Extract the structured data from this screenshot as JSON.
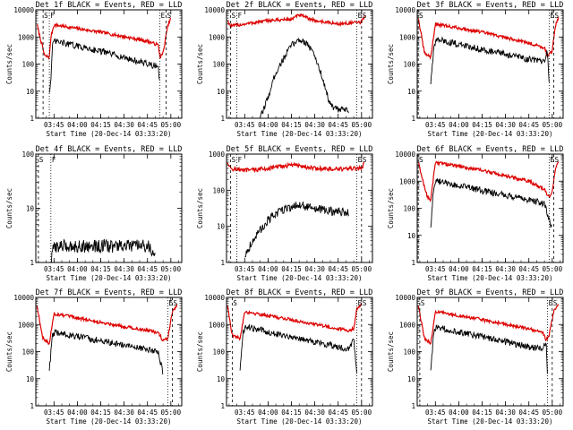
{
  "colors": {
    "events": "#000000",
    "lld": "#dd0000",
    "axes": "#000000",
    "background": "#ffffff"
  },
  "x_tick_labels": [
    "03:45",
    "04:00",
    "04:15",
    "04:30",
    "04:45",
    "05:00"
  ],
  "y_axis_label": "Counts/sec",
  "x_axis_label": "Start Time (20-Dec-14 03:33:20)",
  "chart_data": [
    {
      "type": "line",
      "title": "Det 1f BLACK = Events, RED = LLD",
      "yscale": "log",
      "ylim": [
        1,
        10000
      ],
      "xlabel": "Start Time (20-Dec-14 03:33:20)",
      "ylabel": "Counts/sec",
      "marker_labels": [
        {
          "text": "S",
          "t": "03:38"
        },
        {
          "text": "F",
          "t": "03:42"
        },
        {
          "text": "E",
          "t": "04:53"
        },
        {
          "text": "S",
          "t": "04:57"
        }
      ],
      "series": [
        {
          "role": "LLD",
          "points": [
            [
              "03:34",
              3000
            ],
            [
              "03:39",
              200
            ],
            [
              "03:42",
              180
            ],
            [
              "03:43",
              1000
            ],
            [
              "03:45",
              2800
            ],
            [
              "04:15",
              1500
            ],
            [
              "04:45",
              700
            ],
            [
              "04:52",
              500
            ],
            [
              "04:53",
              180
            ],
            [
              "04:55",
              250
            ],
            [
              "04:58",
              2500
            ],
            [
              "05:00",
              5000
            ]
          ]
        },
        {
          "role": "Events",
          "points": [
            [
              "03:42",
              10
            ],
            [
              "03:43",
              25
            ],
            [
              "03:44",
              400
            ],
            [
              "03:45",
              700
            ],
            [
              "04:15",
              300
            ],
            [
              "04:45",
              100
            ],
            [
              "04:52",
              80
            ],
            [
              "04:53",
              15
            ]
          ]
        }
      ]
    },
    {
      "type": "line",
      "title": "Det 2f BLACK = Events, RED = LLD",
      "yscale": "log",
      "ylim": [
        1,
        10000
      ],
      "xlabel": "Start Time (20-Dec-14 03:33:20)",
      "ylabel": "Counts/sec",
      "marker_labels": [
        {
          "text": "S",
          "t": "03:36"
        },
        {
          "text": "F",
          "t": "03:40"
        },
        {
          "text": "E",
          "t": "04:57"
        },
        {
          "text": "S",
          "t": "05:00"
        }
      ],
      "series": [
        {
          "role": "LLD",
          "points": [
            [
              "03:34",
              4000
            ],
            [
              "03:36",
              2500
            ],
            [
              "03:45",
              3000
            ],
            [
              "04:00",
              4000
            ],
            [
              "04:15",
              4500
            ],
            [
              "04:20",
              6500
            ],
            [
              "04:30",
              4000
            ],
            [
              "04:45",
              3000
            ],
            [
              "05:00",
              3500
            ],
            [
              "05:02",
              6000
            ]
          ]
        },
        {
          "role": "Events",
          "points": [
            [
              "03:55",
              1
            ],
            [
              "04:00",
              6
            ],
            [
              "04:05",
              50
            ],
            [
              "04:15",
              500
            ],
            [
              "04:20",
              800
            ],
            [
              "04:25",
              600
            ],
            [
              "04:30",
              200
            ],
            [
              "04:35",
              30
            ],
            [
              "04:40",
              3
            ],
            [
              "04:45",
              2
            ],
            [
              "04:52",
              2
            ]
          ]
        }
      ]
    },
    {
      "type": "line",
      "title": "Det 3f BLACK = Events, RED = LLD",
      "yscale": "log",
      "ylim": [
        1,
        10000
      ],
      "xlabel": "Start Time (20-Dec-14 03:33:20)",
      "ylabel": "Counts/sec",
      "marker_labels": [
        {
          "text": "S",
          "t": "03:34"
        },
        {
          "text": "E",
          "t": "04:58"
        },
        {
          "text": "S",
          "t": "05:01"
        }
      ],
      "series": [
        {
          "role": "LLD",
          "points": [
            [
              "03:34",
              5000
            ],
            [
              "03:38",
              250
            ],
            [
              "03:42",
              180
            ],
            [
              "03:45",
              3000
            ],
            [
              "04:15",
              1500
            ],
            [
              "04:45",
              600
            ],
            [
              "04:55",
              400
            ],
            [
              "04:57",
              200
            ],
            [
              "05:00",
              300
            ],
            [
              "05:02",
              2500
            ],
            [
              "05:04",
              5000
            ]
          ]
        },
        {
          "role": "Events",
          "points": [
            [
              "03:42",
              20
            ],
            [
              "03:44",
              400
            ],
            [
              "03:46",
              800
            ],
            [
              "04:15",
              350
            ],
            [
              "04:45",
              150
            ],
            [
              "04:55",
              120
            ],
            [
              "04:57",
              300
            ],
            [
              "04:58",
              15
            ]
          ]
        }
      ]
    },
    {
      "type": "line",
      "title": "Det 4f BLACK = Events, RED = LLD",
      "yscale": "log",
      "ylim": [
        1,
        100
      ],
      "xlabel": "Start Time (20-Dec-14 03:33:20)",
      "ylabel": "Counts/sec",
      "marker_labels": [
        {
          "text": "S",
          "t": "03:35"
        },
        {
          "text": "F",
          "t": "03:43"
        }
      ],
      "series": [
        {
          "role": "Events",
          "points": [
            [
              "03:43",
              1
            ],
            [
              "03:45",
              2
            ],
            [
              "04:00",
              2
            ],
            [
              "04:15",
              2
            ],
            [
              "04:30",
              2
            ],
            [
              "04:45",
              2
            ],
            [
              "04:50",
              1.5
            ]
          ]
        }
      ]
    },
    {
      "type": "line",
      "title": "Det 5f BLACK = Events, RED = LLD",
      "yscale": "log",
      "ylim": [
        1,
        1000
      ],
      "xlabel": "Start Time (20-Dec-14 03:33:20)",
      "ylabel": "Counts/sec",
      "marker_labels": [
        {
          "text": "S",
          "t": "03:36"
        },
        {
          "text": "F",
          "t": "03:40"
        },
        {
          "text": "E",
          "t": "04:57"
        },
        {
          "text": "S",
          "t": "05:00"
        }
      ],
      "series": [
        {
          "role": "LLD",
          "points": [
            [
              "03:34",
              600
            ],
            [
              "03:36",
              400
            ],
            [
              "03:45",
              350
            ],
            [
              "04:00",
              400
            ],
            [
              "04:15",
              500
            ],
            [
              "04:20",
              480
            ],
            [
              "04:30",
              400
            ],
            [
              "04:45",
              380
            ],
            [
              "05:00",
              400
            ],
            [
              "05:02",
              600
            ]
          ]
        },
        {
          "role": "Events",
          "points": [
            [
              "03:45",
              1.5
            ],
            [
              "03:50",
              4
            ],
            [
              "04:00",
              15
            ],
            [
              "04:10",
              30
            ],
            [
              "04:20",
              40
            ],
            [
              "04:30",
              30
            ],
            [
              "04:45",
              25
            ],
            [
              "04:52",
              25
            ]
          ]
        }
      ]
    },
    {
      "type": "line",
      "title": "Det 6f BLACK = Events, RED = LLD",
      "yscale": "log",
      "ylim": [
        1,
        10000
      ],
      "xlabel": "Start Time (20-Dec-14 03:33:20)",
      "ylabel": "Counts/sec",
      "marker_labels": [
        {
          "text": "S",
          "t": "03:34"
        },
        {
          "text": "E",
          "t": "04:58"
        },
        {
          "text": "S",
          "t": "05:01"
        }
      ],
      "series": [
        {
          "role": "LLD",
          "points": [
            [
              "03:34",
              5000
            ],
            [
              "03:37",
              1000
            ],
            [
              "03:40",
              250
            ],
            [
              "03:42",
              200
            ],
            [
              "03:45",
              5000
            ],
            [
              "04:15",
              2500
            ],
            [
              "04:45",
              1000
            ],
            [
              "04:55",
              500
            ],
            [
              "04:58",
              250
            ],
            [
              "05:00",
              400
            ],
            [
              "05:02",
              3000
            ],
            [
              "05:04",
              5000
            ]
          ]
        },
        {
          "role": "Events",
          "points": [
            [
              "03:42",
              20
            ],
            [
              "03:44",
              700
            ],
            [
              "03:46",
              1000
            ],
            [
              "04:15",
              450
            ],
            [
              "04:45",
              200
            ],
            [
              "04:55",
              150
            ],
            [
              "04:58",
              40
            ],
            [
              "05:00",
              15
            ]
          ]
        }
      ]
    },
    {
      "type": "line",
      "title": "Det 7f BLACK = Events, RED = LLD",
      "yscale": "log",
      "ylim": [
        1,
        10000
      ],
      "xlabel": "Start Time (20-Dec-14 03:33:20)",
      "ylabel": "Counts/sec",
      "marker_labels": [
        {
          "text": "E",
          "t": "04:58"
        },
        {
          "text": "S",
          "t": "05:01"
        }
      ],
      "series": [
        {
          "role": "LLD",
          "points": [
            [
              "03:34",
              5000
            ],
            [
              "03:38",
              300
            ],
            [
              "03:42",
              200
            ],
            [
              "03:45",
              2500
            ],
            [
              "04:15",
              1200
            ],
            [
              "04:45",
              600
            ],
            [
              "04:52",
              500
            ],
            [
              "04:55",
              250
            ],
            [
              "04:58",
              300
            ],
            [
              "05:01",
              3000
            ],
            [
              "05:04",
              5000
            ]
          ]
        },
        {
          "role": "Events",
          "points": [
            [
              "03:42",
              20
            ],
            [
              "03:44",
              400
            ],
            [
              "03:46",
              500
            ],
            [
              "04:15",
              250
            ],
            [
              "04:45",
              120
            ],
            [
              "04:52",
              100
            ],
            [
              "04:55",
              15
            ]
          ]
        }
      ]
    },
    {
      "type": "line",
      "title": "Det 8f BLACK = Events, RED = LLD",
      "yscale": "log",
      "ylim": [
        1,
        10000
      ],
      "xlabel": "Start Time (20-Dec-14 03:33:20)",
      "ylabel": "Counts/sec",
      "marker_labels": [
        {
          "text": "S",
          "t": "03:37"
        },
        {
          "text": "E",
          "t": "04:57"
        },
        {
          "text": "S",
          "t": "05:00"
        }
      ],
      "series": [
        {
          "role": "LLD",
          "points": [
            [
              "03:34",
              5000
            ],
            [
              "03:37",
              400
            ],
            [
              "03:42",
              300
            ],
            [
              "03:45",
              3000
            ],
            [
              "04:15",
              1500
            ],
            [
              "04:45",
              700
            ],
            [
              "04:52",
              600
            ],
            [
              "04:55",
              700
            ],
            [
              "04:57",
              4000
            ],
            [
              "05:00",
              6000
            ]
          ]
        },
        {
          "role": "Events",
          "points": [
            [
              "03:42",
              20
            ],
            [
              "03:44",
              600
            ],
            [
              "03:46",
              800
            ],
            [
              "04:15",
              350
            ],
            [
              "04:45",
              150
            ],
            [
              "04:52",
              120
            ],
            [
              "04:55",
              300
            ],
            [
              "04:57",
              15
            ]
          ]
        }
      ]
    },
    {
      "type": "line",
      "title": "Det 9f BLACK = Events, RED = LLD",
      "yscale": "log",
      "ylim": [
        1,
        10000
      ],
      "xlabel": "Start Time (20-Dec-14 03:33:20)",
      "ylabel": "Counts/sec",
      "marker_labels": [
        {
          "text": "S",
          "t": "03:35"
        },
        {
          "text": "E",
          "t": "04:57"
        },
        {
          "text": "S",
          "t": "05:00"
        }
      ],
      "series": [
        {
          "role": "LLD",
          "points": [
            [
              "03:34",
              5000
            ],
            [
              "03:38",
              300
            ],
            [
              "03:42",
              200
            ],
            [
              "03:45",
              3000
            ],
            [
              "04:15",
              1500
            ],
            [
              "04:45",
              700
            ],
            [
              "04:54",
              500
            ],
            [
              "04:56",
              250
            ],
            [
              "04:58",
              400
            ],
            [
              "05:01",
              3000
            ],
            [
              "05:04",
              5000
            ]
          ]
        },
        {
          "role": "Events",
          "points": [
            [
              "03:42",
              20
            ],
            [
              "03:44",
              500
            ],
            [
              "03:46",
              800
            ],
            [
              "04:15",
              350
            ],
            [
              "04:45",
              150
            ],
            [
              "04:54",
              120
            ],
            [
              "04:56",
              250
            ],
            [
              "04:57",
              15
            ]
          ]
        }
      ]
    }
  ]
}
